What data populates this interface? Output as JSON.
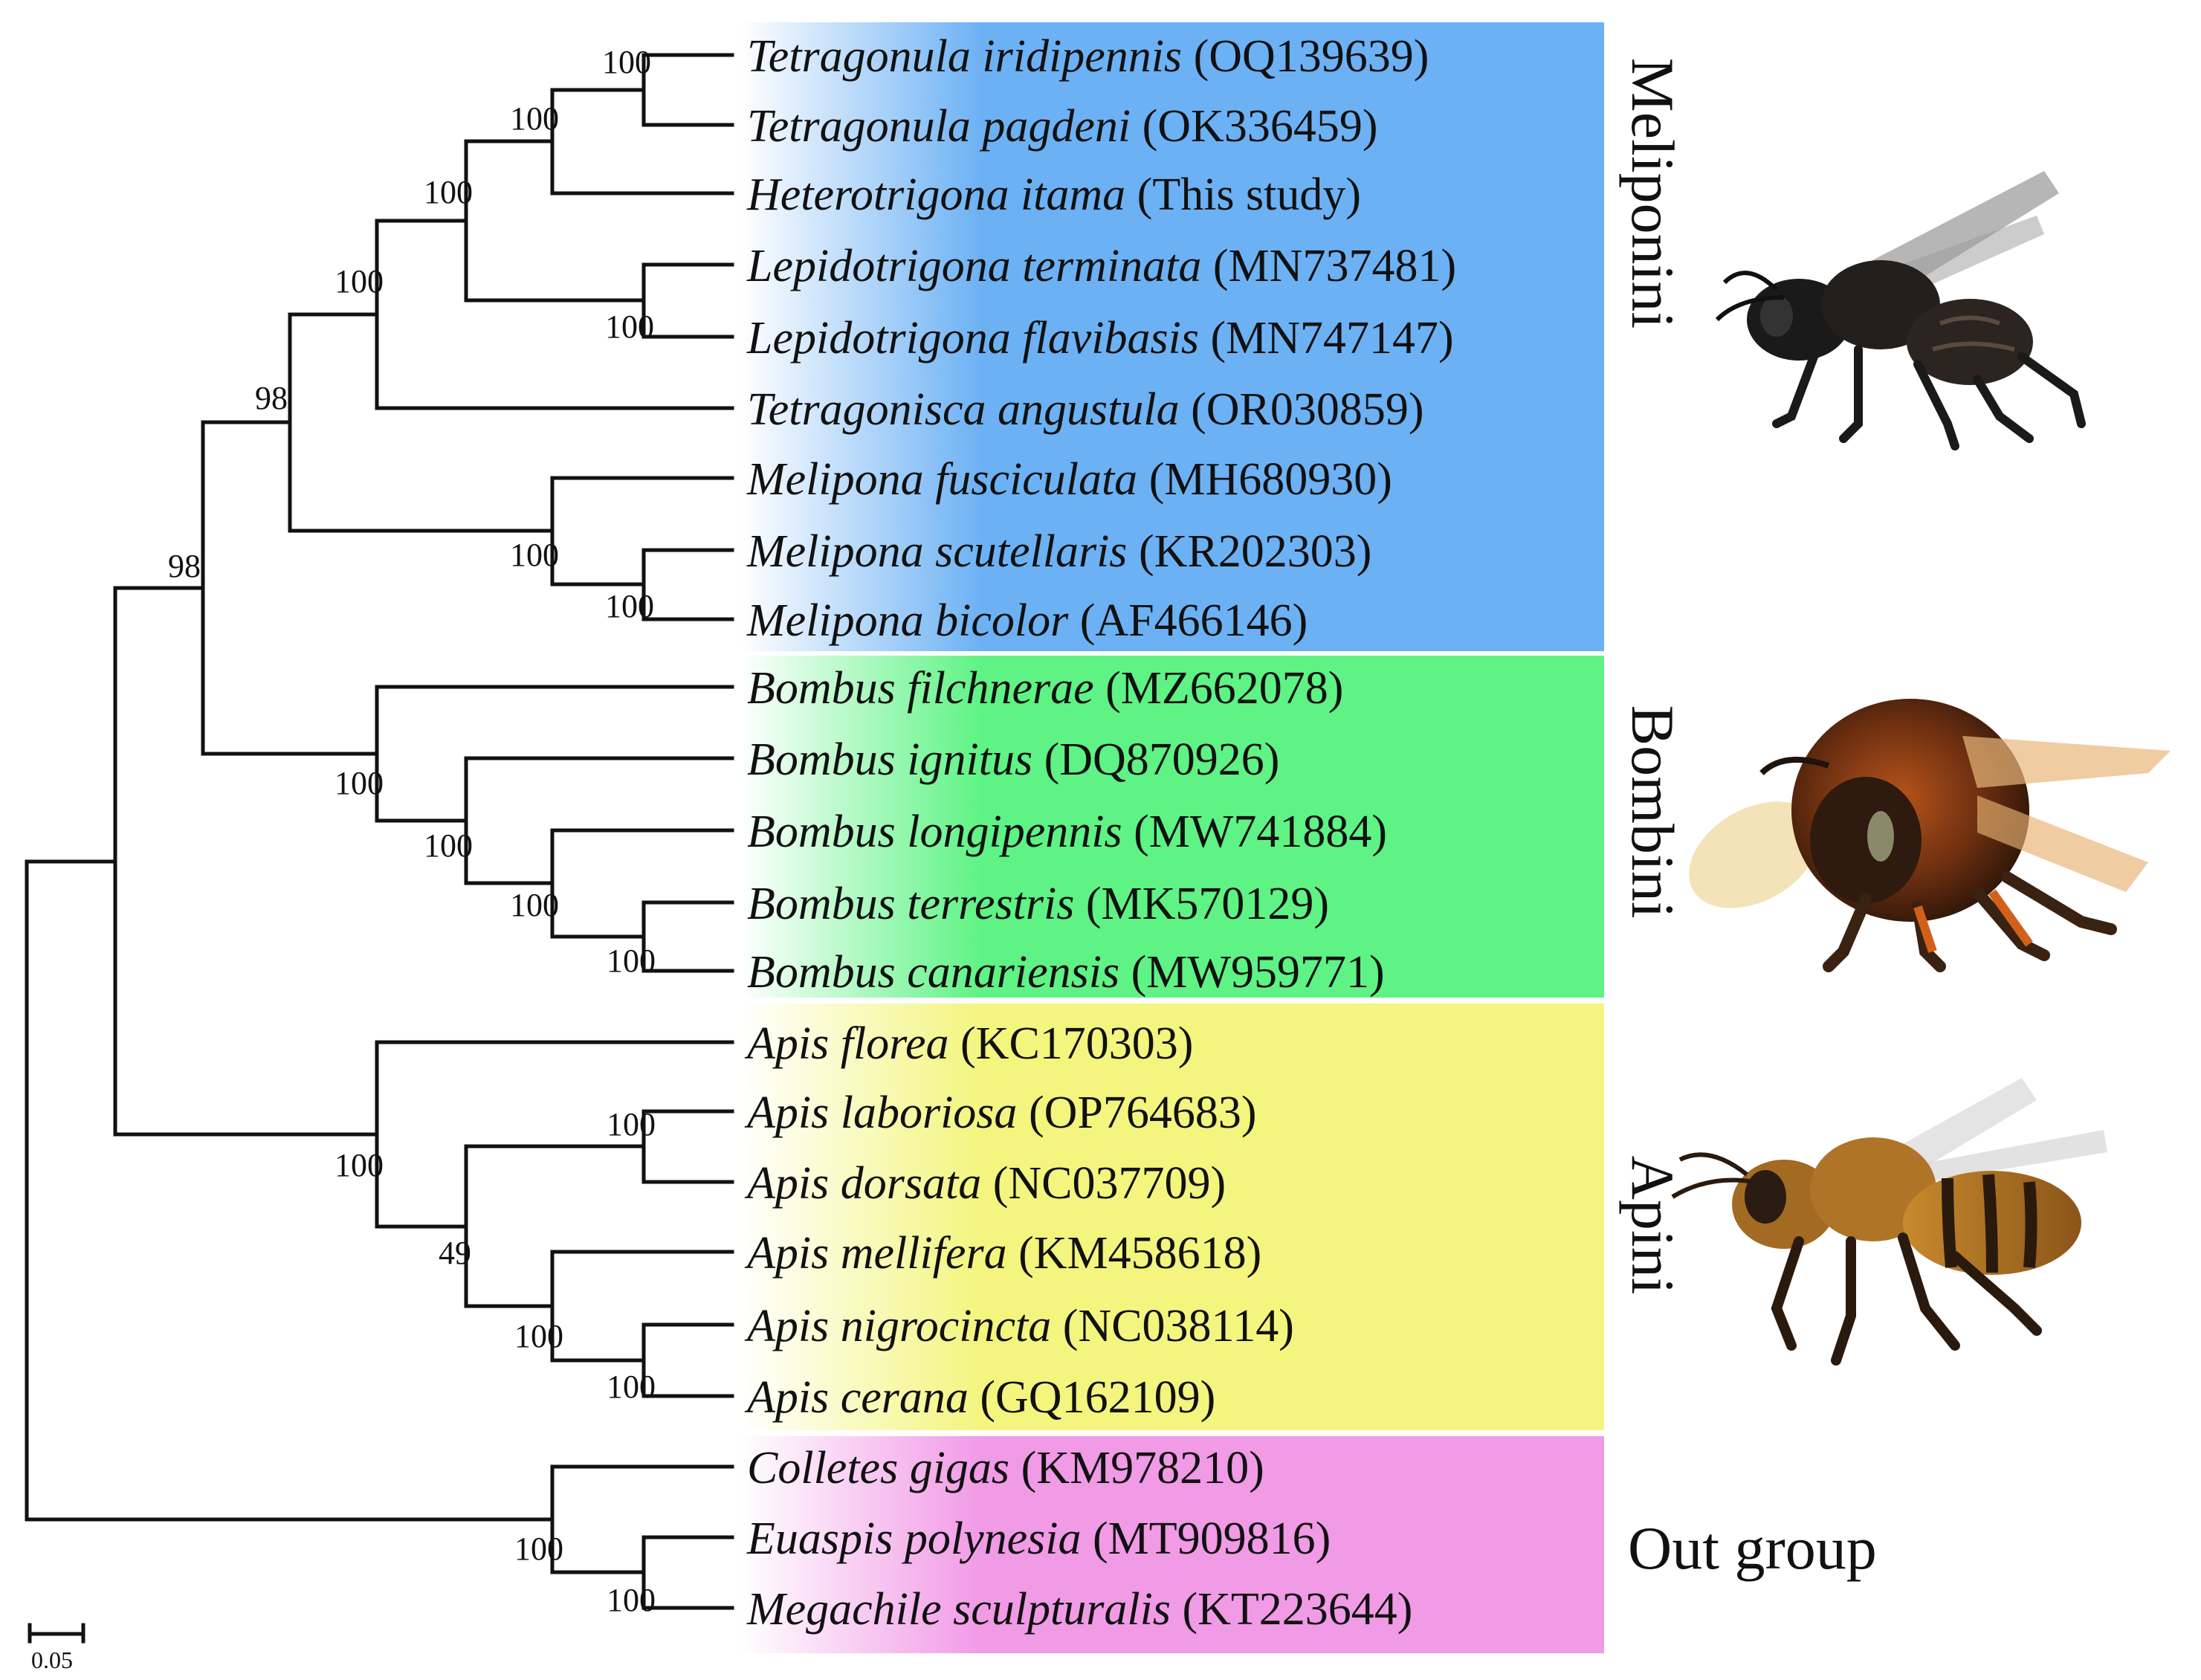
{
  "figure": {
    "clades": [
      {
        "name": "Meliponini",
        "color_start": "#ffffff",
        "color_end": "#6cb1f4",
        "label_orientation": "vertical"
      },
      {
        "name": "Bombini",
        "color_start": "#ffffff",
        "color_end": "#5ef384",
        "label_orientation": "vertical"
      },
      {
        "name": "Apini",
        "color_start": "#ffffff",
        "color_end": "#f3f57e",
        "label_orientation": "vertical"
      },
      {
        "name": "Out group",
        "color_start": "#ffffff",
        "color_end": "#f19ae6",
        "label_orientation": "horizontal"
      }
    ],
    "taxa": [
      {
        "species": "Tetragonula iridipennis",
        "accession": "(OQ139639)",
        "clade": 0
      },
      {
        "species": "Tetragonula pagdeni",
        "accession": "(OK336459)",
        "clade": 0
      },
      {
        "species": "Heterotrigona itama",
        "accession": "(This study)",
        "clade": 0
      },
      {
        "species": "Lepidotrigona terminata",
        "accession": "(MN737481)",
        "clade": 0
      },
      {
        "species": "Lepidotrigona flavibasis",
        "accession": "(MN747147)",
        "clade": 0
      },
      {
        "species": "Tetragonisca angustula",
        "accession": "(OR030859)",
        "clade": 0
      },
      {
        "species": "Melipona fusciculata",
        "accession": "(MH680930)",
        "clade": 0
      },
      {
        "species": "Melipona scutellaris",
        "accession": "(KR202303)",
        "clade": 0
      },
      {
        "species": "Melipona bicolor",
        "accession": "(AF466146)",
        "clade": 0
      },
      {
        "species": "Bombus filchnerae",
        "accession": "(MZ662078)",
        "clade": 1
      },
      {
        "species": "Bombus ignitus",
        "accession": "(DQ870926)",
        "clade": 1
      },
      {
        "species": "Bombus longipennis",
        "accession": "(MW741884)",
        "clade": 1
      },
      {
        "species": "Bombus terrestris",
        "accession": "(MK570129)",
        "clade": 1
      },
      {
        "species": "Bombus canariensis",
        "accession": "(MW959771)",
        "clade": 1
      },
      {
        "species": "Apis florea",
        "accession": "(KC170303)",
        "clade": 2
      },
      {
        "species": "Apis laboriosa",
        "accession": "(OP764683)",
        "clade": 2
      },
      {
        "species": "Apis dorsata",
        "accession": "(NC037709)",
        "clade": 2
      },
      {
        "species": "Apis mellifera",
        "accession": "(KM458618)",
        "clade": 2
      },
      {
        "species": "Apis nigrocincta",
        "accession": "(NC038114)",
        "clade": 2
      },
      {
        "species": "Apis cerana",
        "accession": "(GQ162109)",
        "clade": 2
      },
      {
        "species": "Colletes gigas",
        "accession": "(KM978210)",
        "clade": 3
      },
      {
        "species": "Euaspis polynesia",
        "accession": "(MT909816)",
        "clade": 3
      },
      {
        "species": "Megachile sculpturalis",
        "accession": "(KT223644)",
        "clade": 3
      }
    ],
    "support_values": [
      "100",
      "100",
      "100",
      "100",
      "100",
      "98",
      "100",
      "100",
      "98",
      "100",
      "100",
      "100",
      "100",
      "100",
      "100",
      "49",
      "100",
      "100",
      "100",
      "100"
    ],
    "scale_bar": {
      "value": "0.05"
    },
    "photos": [
      {
        "subject": "stingless bee",
        "clade": "Meliponini"
      },
      {
        "subject": "bumblebee",
        "clade": "Bombini"
      },
      {
        "subject": "honey bee",
        "clade": "Apini"
      }
    ]
  }
}
